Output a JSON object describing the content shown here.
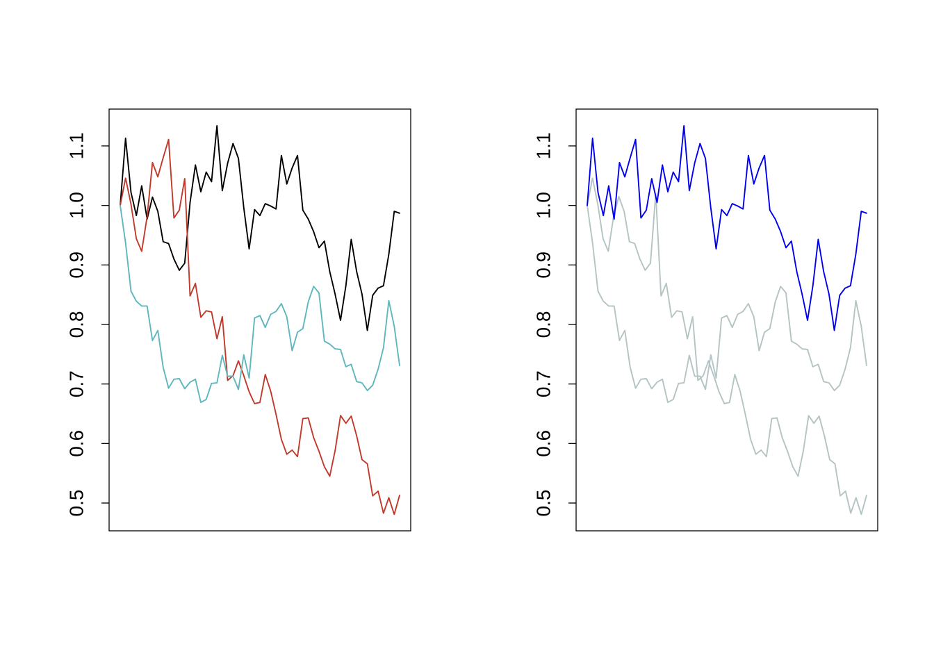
{
  "chart_data": [
    {
      "type": "line",
      "title": "",
      "xlabel": "",
      "ylabel": "",
      "x_axis": "none",
      "ylim": [
        0.45,
        1.16
      ],
      "yticks": [
        "0.5",
        "0.6",
        "0.7",
        "0.8",
        "0.9",
        "1.0",
        "1.1"
      ],
      "grid": false,
      "legend": "none",
      "series": [
        {
          "color": "#000000",
          "values": [
            1.0,
            1.113,
            1.022,
            0.983,
            1.033,
            0.977,
            1.014,
            0.99,
            0.939,
            0.936,
            0.91,
            0.891,
            0.903,
            1.005,
            1.068,
            1.023,
            1.056,
            1.04,
            1.134,
            1.025,
            1.071,
            1.104,
            1.079,
            0.996,
            0.927,
            0.993,
            0.983,
            1.003,
            0.999,
            0.994,
            1.084,
            1.036,
            1.063,
            1.084,
            0.992,
            0.977,
            0.956,
            0.929,
            0.94,
            0.889,
            0.851,
            0.807,
            0.865,
            0.943,
            0.889,
            0.851,
            0.79,
            0.849,
            0.861,
            0.865,
            0.918,
            0.99,
            0.987
          ]
        },
        {
          "color": "#C0392B",
          "values": [
            1.0,
            1.046,
            1.002,
            0.944,
            0.923,
            0.981,
            1.072,
            1.048,
            1.08,
            1.111,
            0.979,
            0.992,
            1.045,
            0.848,
            0.869,
            0.812,
            0.823,
            0.821,
            0.776,
            0.813,
            0.706,
            0.714,
            0.739,
            0.714,
            0.687,
            0.667,
            0.669,
            0.716,
            0.688,
            0.649,
            0.607,
            0.582,
            0.589,
            0.578,
            0.642,
            0.643,
            0.61,
            0.587,
            0.561,
            0.545,
            0.588,
            0.647,
            0.634,
            0.646,
            0.613,
            0.573,
            0.566,
            0.512,
            0.52,
            0.483,
            0.509,
            0.481,
            0.513
          ]
        },
        {
          "color": "#5DB7BD",
          "values": [
            1.0,
            0.937,
            0.856,
            0.839,
            0.831,
            0.831,
            0.773,
            0.79,
            0.728,
            0.693,
            0.708,
            0.709,
            0.692,
            0.703,
            0.708,
            0.669,
            0.674,
            0.701,
            0.702,
            0.748,
            0.713,
            0.713,
            0.691,
            0.749,
            0.71,
            0.811,
            0.815,
            0.795,
            0.817,
            0.822,
            0.835,
            0.813,
            0.756,
            0.787,
            0.793,
            0.838,
            0.864,
            0.853,
            0.772,
            0.767,
            0.759,
            0.758,
            0.729,
            0.733,
            0.704,
            0.702,
            0.689,
            0.698,
            0.725,
            0.761,
            0.84,
            0.797,
            0.731
          ]
        }
      ]
    },
    {
      "type": "line",
      "title": "",
      "xlabel": "",
      "ylabel": "",
      "x_axis": "none",
      "ylim": [
        0.45,
        1.16
      ],
      "yticks": [
        "0.5",
        "0.6",
        "0.7",
        "0.8",
        "0.9",
        "1.0",
        "1.1"
      ],
      "grid": false,
      "legend": "none",
      "series": [
        {
          "color": "#B4C3C3",
          "values": [
            1.0,
            1.046,
            1.002,
            0.944,
            0.923,
            0.981,
            1.015,
            0.99,
            0.939,
            0.936,
            0.91,
            0.891,
            0.903,
            1.02,
            0.848,
            0.869,
            0.812,
            0.823,
            0.821,
            0.776,
            0.813,
            0.706,
            0.714,
            0.739,
            0.714,
            0.687,
            0.667,
            0.669,
            0.716,
            0.688,
            0.649,
            0.607,
            0.582,
            0.589,
            0.578,
            0.642,
            0.643,
            0.61,
            0.587,
            0.561,
            0.545,
            0.588,
            0.647,
            0.634,
            0.646,
            0.613,
            0.573,
            0.566,
            0.512,
            0.52,
            0.483,
            0.509,
            0.481,
            0.513
          ]
        },
        {
          "color": "#B4C3C3",
          "values": [
            1.0,
            0.937,
            0.856,
            0.839,
            0.831,
            0.831,
            0.773,
            0.79,
            0.728,
            0.693,
            0.708,
            0.709,
            0.692,
            0.703,
            0.708,
            0.669,
            0.674,
            0.701,
            0.702,
            0.748,
            0.713,
            0.713,
            0.691,
            0.749,
            0.71,
            0.811,
            0.815,
            0.795,
            0.817,
            0.822,
            0.835,
            0.813,
            0.756,
            0.787,
            0.793,
            0.838,
            0.864,
            0.853,
            0.772,
            0.767,
            0.759,
            0.758,
            0.729,
            0.733,
            0.704,
            0.702,
            0.689,
            0.698,
            0.725,
            0.761,
            0.84,
            0.797,
            0.731
          ]
        },
        {
          "color": "#0000EE",
          "values": [
            1.0,
            1.113,
            1.022,
            0.983,
            1.033,
            0.977,
            1.072,
            1.048,
            1.08,
            1.111,
            0.979,
            0.992,
            1.045,
            1.005,
            1.068,
            1.023,
            1.056,
            1.04,
            1.134,
            1.025,
            1.071,
            1.104,
            1.079,
            0.996,
            0.927,
            0.993,
            0.983,
            1.003,
            0.999,
            0.994,
            1.084,
            1.036,
            1.063,
            1.084,
            0.992,
            0.977,
            0.956,
            0.929,
            0.94,
            0.889,
            0.851,
            0.807,
            0.865,
            0.943,
            0.889,
            0.851,
            0.79,
            0.849,
            0.861,
            0.865,
            0.918,
            0.99,
            0.987
          ]
        }
      ]
    }
  ]
}
